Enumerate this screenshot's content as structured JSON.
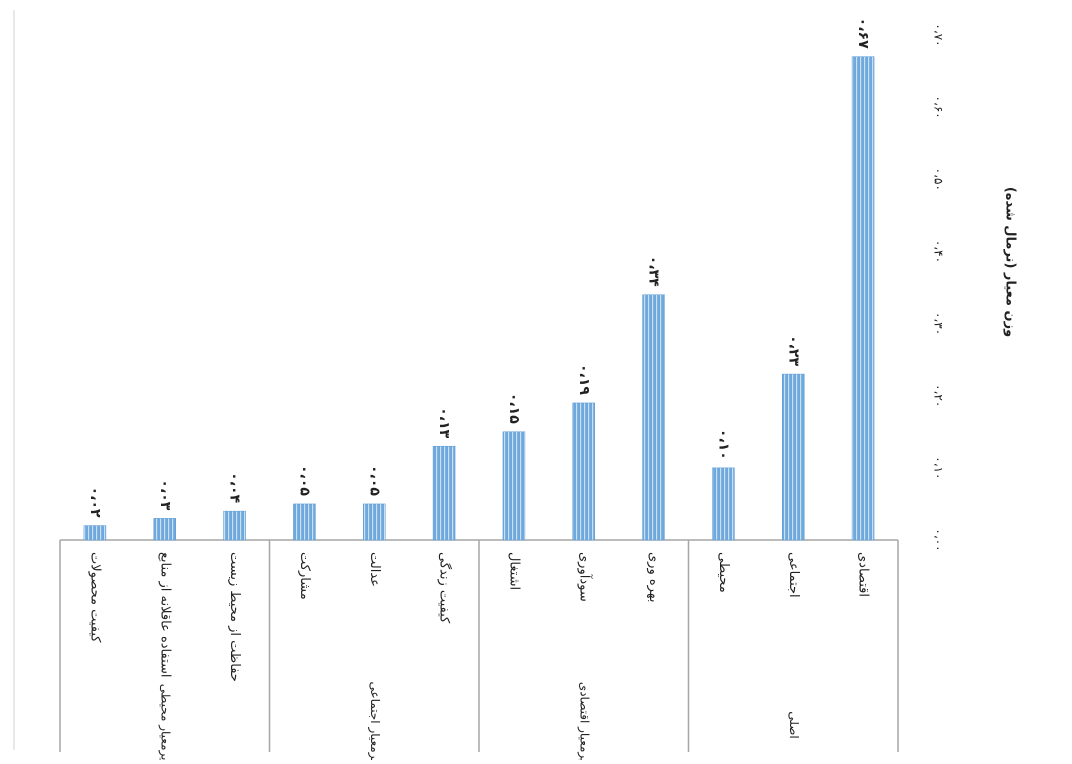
{
  "chart_data": {
    "type": "bar",
    "orientation": "horizontal-rotated",
    "ylabel": "وزن معیار (نرمال شده)",
    "xlim": [
      0,
      0.7
    ],
    "ticks": [
      "۰،۰۰",
      "۰،۱۰",
      "۰،۲۰",
      "۰،۳۰",
      "۰،۴۰",
      "۰،۵۰",
      "۰،۶۰",
      "۰،۷۰"
    ],
    "bar_color": "#6fa8dc",
    "grid": false,
    "groups": [
      {
        "name": "اصلی",
        "categories": [
          "اقتصادی",
          "اجتماعی",
          "محیطی"
        ]
      },
      {
        "name": "زیرمعیار اقتصادی",
        "categories": [
          "بهره وری",
          "سودآوری",
          "اشتغال"
        ]
      },
      {
        "name": "زیرمعیار اجتماعی",
        "categories": [
          "کیفیت زندگی",
          "عدالت",
          "مشارکت"
        ]
      },
      {
        "name": "زیرمعیار محیطی",
        "categories": [
          "حفاظت از محیط زیست",
          "استفاده عاقلانه از منابع",
          "کیفیت محصولات"
        ]
      }
    ],
    "categories": [
      "اقتصادی",
      "اجتماعی",
      "محیطی",
      "بهره وری",
      "سودآوری",
      "اشتغال",
      "کیفیت زندگی",
      "عدالت",
      "مشارکت",
      "حفاظت از محیط زیست",
      "استفاده عاقلانه از منابع",
      "کیفیت محصولات"
    ],
    "values": [
      0.67,
      0.23,
      0.1,
      0.34,
      0.19,
      0.15,
      0.13,
      0.05,
      0.05,
      0.04,
      0.03,
      0.02
    ],
    "value_labels": [
      "۰،۶۷",
      "۰،۲۳",
      "۰،۱۰",
      "۰،۳۴",
      "۰،۱۹",
      "۰،۱۵",
      "۰،۱۳",
      "۰،۰۵",
      "۰،۰۵",
      "۰،۰۴",
      "۰،۰۳",
      "۰،۰۲"
    ]
  }
}
